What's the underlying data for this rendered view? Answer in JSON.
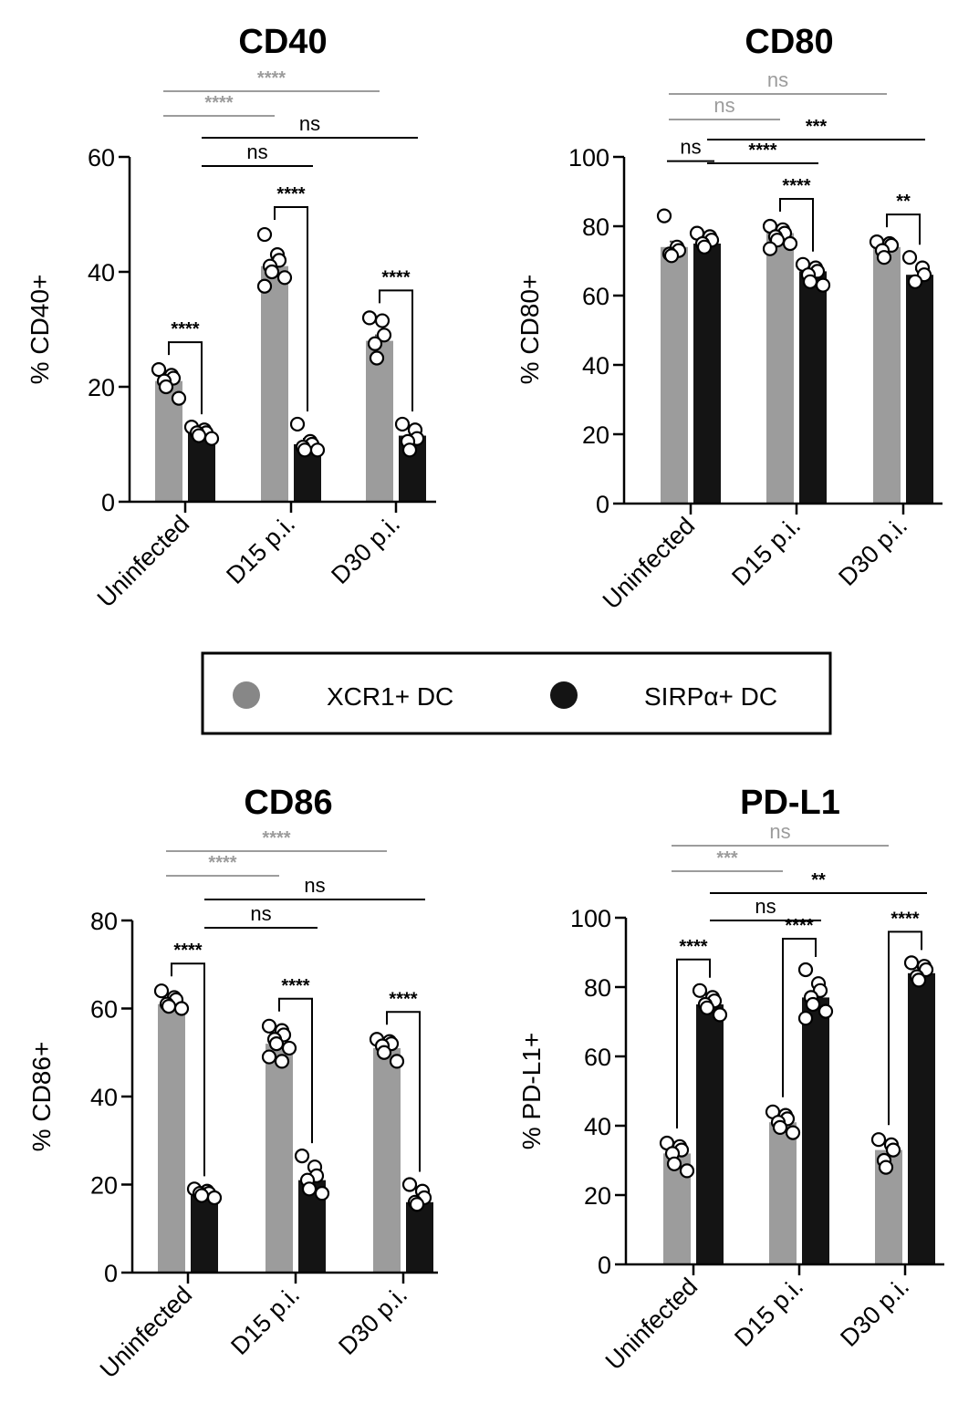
{
  "legend": {
    "items": [
      {
        "label": "XCR1+ DC",
        "color": "#878787"
      },
      {
        "label": "SIRPα+ DC",
        "color": "#141414"
      }
    ]
  },
  "colors": {
    "xcr1_bar": "#9c9c9c",
    "sirpa_bar": "#141414",
    "sig_gray": "#9c9c9c",
    "sig_black": "#000000"
  },
  "chart_data": [
    {
      "type": "bar",
      "title": "CD40",
      "ylabel": "% CD40+",
      "ylim": [
        0,
        60
      ],
      "yticks": [
        0,
        20,
        40,
        60
      ],
      "categories": [
        "Uninfected",
        "D15 p.i.",
        "D30 p.i."
      ],
      "series": [
        {
          "name": "XCR1+ DC",
          "values": [
            21,
            41,
            28
          ],
          "points": [
            [
              23,
              22,
              21.5,
              21,
              20,
              18
            ],
            [
              46.5,
              43,
              42,
              41,
              40,
              39,
              37.5
            ],
            [
              32,
              31.5,
              29,
              27.5,
              25
            ]
          ]
        },
        {
          "name": "SIRPα+ DC",
          "values": [
            12,
            10,
            11.5
          ],
          "points": [
            [
              13,
              12.5,
              12,
              12,
              11.5,
              11
            ],
            [
              13.5,
              10.5,
              10,
              9.5,
              9,
              9
            ],
            [
              13.5,
              12.5,
              11,
              10.5,
              9
            ]
          ]
        }
      ],
      "comparisons": [
        {
          "label": "****",
          "from": [
            0,
            0
          ],
          "to": [
            2,
            0
          ],
          "color": "gray"
        },
        {
          "label": "****",
          "from": [
            0,
            0
          ],
          "to": [
            1,
            0
          ],
          "color": "gray"
        },
        {
          "label": "ns",
          "from": [
            0,
            1
          ],
          "to": [
            2,
            1
          ],
          "color": "black"
        },
        {
          "label": "ns",
          "from": [
            0,
            1
          ],
          "to": [
            1,
            1
          ],
          "color": "black"
        },
        {
          "label": "****",
          "group": 0,
          "style": "bracket"
        },
        {
          "label": "****",
          "group": 1,
          "style": "bracket"
        },
        {
          "label": "****",
          "group": 2,
          "style": "bracket"
        }
      ]
    },
    {
      "type": "bar",
      "title": "CD80",
      "ylabel": "% CD80+",
      "ylim": [
        0,
        100
      ],
      "yticks": [
        0,
        20,
        40,
        60,
        80,
        100
      ],
      "categories": [
        "Uninfected",
        "D15 p.i.",
        "D30 p.i."
      ],
      "series": [
        {
          "name": "XCR1+ DC",
          "values": [
            74,
            78,
            74
          ],
          "points": [
            [
              83,
              74,
              73,
              72,
              71.5
            ],
            [
              80,
              79,
              78,
              77,
              76,
              75,
              73.5
            ],
            [
              75.5,
              75,
              74.5,
              73,
              71
            ]
          ]
        },
        {
          "name": "SIRPα+ DC",
          "values": [
            75,
            67,
            66
          ],
          "points": [
            [
              78,
              77,
              76,
              75,
              74
            ],
            [
              69,
              68,
              67,
              66,
              64,
              63
            ],
            [
              71,
              68,
              66,
              64
            ]
          ]
        }
      ],
      "comparisons": [
        {
          "label": "ns",
          "from": [
            0,
            0
          ],
          "to": [
            2,
            0
          ],
          "color": "gray"
        },
        {
          "label": "ns",
          "from": [
            0,
            0
          ],
          "to": [
            1,
            0
          ],
          "color": "gray"
        },
        {
          "label": "***",
          "from": [
            0,
            1
          ],
          "to": [
            2,
            1
          ],
          "color": "black"
        },
        {
          "label": "****",
          "from": [
            0,
            1
          ],
          "to": [
            1,
            1
          ],
          "color": "black"
        },
        {
          "label": "ns",
          "group": 0,
          "style": "line"
        },
        {
          "label": "****",
          "group": 1,
          "style": "bracket"
        },
        {
          "label": "**",
          "group": 2,
          "style": "bracket"
        }
      ]
    },
    {
      "type": "bar",
      "title": "CD86",
      "ylabel": "% CD86+",
      "ylim": [
        0,
        80
      ],
      "yticks": [
        0,
        20,
        40,
        60,
        80
      ],
      "categories": [
        "Uninfected",
        "D15 p.i.",
        "D30 p.i."
      ],
      "series": [
        {
          "name": "XCR1+ DC",
          "values": [
            61,
            52,
            51
          ],
          "points": [
            [
              64,
              62.5,
              62,
              61,
              60.5,
              60
            ],
            [
              56,
              55,
              54,
              53,
              52,
              51,
              49,
              48
            ],
            [
              53,
              52.5,
              52,
              51.5,
              50,
              48
            ]
          ]
        },
        {
          "name": "SIRPα+ DC",
          "values": [
            17.5,
            21,
            16
          ],
          "points": [
            [
              19,
              18.5,
              18,
              18,
              17.5,
              17
            ],
            [
              26.5,
              24,
              22,
              21,
              19,
              18
            ],
            [
              20,
              18.5,
              17,
              16,
              15.5
            ]
          ]
        }
      ],
      "comparisons": [
        {
          "label": "****",
          "from": [
            0,
            0
          ],
          "to": [
            2,
            0
          ],
          "color": "gray"
        },
        {
          "label": "****",
          "from": [
            0,
            0
          ],
          "to": [
            1,
            0
          ],
          "color": "gray"
        },
        {
          "label": "ns",
          "from": [
            0,
            1
          ],
          "to": [
            2,
            1
          ],
          "color": "black"
        },
        {
          "label": "ns",
          "from": [
            0,
            1
          ],
          "to": [
            1,
            1
          ],
          "color": "black"
        },
        {
          "label": "****",
          "group": 0,
          "style": "bracket"
        },
        {
          "label": "****",
          "group": 1,
          "style": "bracket"
        },
        {
          "label": "****",
          "group": 2,
          "style": "bracket"
        }
      ]
    },
    {
      "type": "bar",
      "title": "PD-L1",
      "ylabel": "% PD-L1+",
      "ylim": [
        0,
        100
      ],
      "yticks": [
        0,
        20,
        40,
        60,
        80,
        100
      ],
      "categories": [
        "Uninfected",
        "D15 p.i.",
        "D30 p.i."
      ],
      "series": [
        {
          "name": "XCR1+ DC",
          "values": [
            32,
            41,
            33
          ],
          "points": [
            [
              35,
              34,
              33,
              32,
              29,
              27
            ],
            [
              44,
              43,
              42,
              41,
              39.5,
              38
            ],
            [
              36,
              34.5,
              33,
              30,
              28
            ]
          ]
        },
        {
          "name": "SIRPα+ DC",
          "values": [
            75,
            77,
            84
          ],
          "points": [
            [
              79,
              77,
              76,
              75,
              74,
              72
            ],
            [
              85,
              81,
              79,
              77,
              75,
              73,
              71
            ],
            [
              87,
              86,
              85,
              83,
              82
            ]
          ]
        }
      ],
      "comparisons": [
        {
          "label": "ns",
          "from": [
            0,
            0
          ],
          "to": [
            2,
            0
          ],
          "color": "gray"
        },
        {
          "label": "***",
          "from": [
            0,
            0
          ],
          "to": [
            1,
            0
          ],
          "color": "gray"
        },
        {
          "label": "**",
          "from": [
            0,
            1
          ],
          "to": [
            2,
            1
          ],
          "color": "black"
        },
        {
          "label": "ns",
          "from": [
            0,
            1
          ],
          "to": [
            1,
            1
          ],
          "color": "black"
        },
        {
          "label": "****",
          "group": 0,
          "style": "bracket-up"
        },
        {
          "label": "****",
          "group": 1,
          "style": "bracket-up"
        },
        {
          "label": "****",
          "group": 2,
          "style": "bracket-up"
        }
      ]
    }
  ]
}
